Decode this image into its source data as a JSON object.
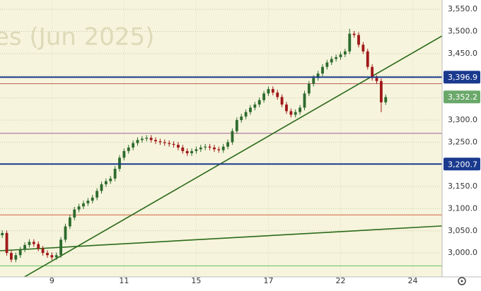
{
  "chart_data": {
    "type": "candlestick",
    "watermark": "es (Jun 2025)",
    "categories": [
      null,
      null,
      null,
      null,
      null,
      null,
      null,
      null,
      null,
      null,
      null,
      "9",
      null,
      null,
      null,
      null,
      null,
      null,
      null,
      null,
      null,
      null,
      null,
      null,
      null,
      null,
      null,
      "11",
      null,
      null,
      null,
      null,
      null,
      null,
      null,
      null,
      null,
      null,
      null,
      null,
      null,
      null,
      null,
      "15",
      null,
      null,
      null,
      null,
      null,
      null,
      null,
      null,
      null,
      null,
      null,
      null,
      null,
      null,
      null,
      "17",
      null,
      null,
      null,
      null,
      null,
      null,
      null,
      null,
      null,
      null,
      null,
      null,
      null,
      null,
      null,
      "22",
      null,
      null,
      null,
      null,
      null,
      null,
      null,
      null,
      null,
      null,
      null,
      null,
      null,
      null,
      null,
      "24",
      null,
      null,
      null,
      null,
      null,
      null
    ],
    "open": [
      3040,
      3045,
      3000,
      2985,
      2995,
      3008,
      3018,
      3025,
      3020,
      3010,
      3000,
      2995,
      2990,
      2995,
      3030,
      3060,
      3080,
      3098,
      3105,
      3112,
      3118,
      3125,
      3140,
      3155,
      3162,
      3168,
      3190,
      3215,
      3230,
      3238,
      3248,
      3255,
      3258,
      3260,
      3255,
      3252,
      3250,
      3248,
      3246,
      3244,
      3238,
      3230,
      3225,
      3230,
      3234,
      3238,
      3240,
      3238,
      3234,
      3232,
      3240,
      3250,
      3275,
      3300,
      3308,
      3318,
      3328,
      3335,
      3345,
      3360,
      3370,
      3362,
      3352,
      3335,
      3320,
      3312,
      3318,
      3328,
      3360,
      3382,
      3395,
      3405,
      3420,
      3430,
      3438,
      3442,
      3448,
      3455,
      3495,
      3492,
      3470,
      3455,
      3420,
      3395,
      3388,
      3340,
      null,
      null,
      null,
      null,
      null,
      null,
      null,
      null,
      null,
      null,
      null,
      null
    ],
    "high": [
      3051,
      3051,
      3006,
      3001,
      3014,
      3024,
      3031,
      3031,
      3026,
      3016,
      3006,
      3001,
      3001,
      3036,
      3066,
      3086,
      3104,
      3111,
      3118,
      3124,
      3131,
      3146,
      3161,
      3168,
      3174,
      3196,
      3221,
      3236,
      3244,
      3254,
      3261,
      3264,
      3266,
      3266,
      3261,
      3258,
      3256,
      3254,
      3252,
      3250,
      3244,
      3236,
      3236,
      3240,
      3244,
      3246,
      3246,
      3244,
      3240,
      3246,
      3256,
      3281,
      3306,
      3314,
      3324,
      3334,
      3341,
      3351,
      3366,
      3376,
      3376,
      3368,
      3358,
      3341,
      3326,
      3324,
      3334,
      3366,
      3388,
      3401,
      3411,
      3426,
      3436,
      3444,
      3448,
      3454,
      3461,
      3506,
      3501,
      3498,
      3476,
      3461,
      3426,
      3401,
      3394,
      3358,
      null,
      null,
      null,
      null,
      null,
      null,
      null,
      null,
      null,
      null,
      null,
      null
    ],
    "low": [
      3034,
      2994,
      2979,
      2979,
      2989,
      3002,
      3012,
      3014,
      3004,
      2994,
      2989,
      2984,
      2984,
      2989,
      3024,
      3054,
      3074,
      3092,
      3099,
      3106,
      3112,
      3119,
      3134,
      3149,
      3156,
      3162,
      3184,
      3209,
      3224,
      3232,
      3242,
      3249,
      3252,
      3249,
      3246,
      3244,
      3242,
      3240,
      3238,
      3232,
      3224,
      3219,
      3219,
      3224,
      3228,
      3232,
      3232,
      3228,
      3226,
      3226,
      3234,
      3244,
      3269,
      3294,
      3302,
      3312,
      3322,
      3329,
      3339,
      3354,
      3356,
      3346,
      3329,
      3314,
      3306,
      3306,
      3312,
      3322,
      3354,
      3376,
      3389,
      3399,
      3414,
      3424,
      3432,
      3436,
      3442,
      3449,
      3486,
      3464,
      3449,
      3414,
      3389,
      3382,
      3318,
      3334,
      null,
      null,
      null,
      null,
      null,
      null,
      null,
      null,
      null,
      null,
      null,
      null
    ],
    "close": [
      3045,
      3000,
      2985,
      2995,
      3008,
      3018,
      3025,
      3020,
      3010,
      3000,
      2995,
      2990,
      2995,
      3030,
      3060,
      3080,
      3098,
      3105,
      3112,
      3118,
      3125,
      3140,
      3155,
      3162,
      3168,
      3190,
      3215,
      3230,
      3238,
      3248,
      3255,
      3258,
      3260,
      3255,
      3252,
      3250,
      3248,
      3246,
      3244,
      3238,
      3230,
      3225,
      3230,
      3234,
      3238,
      3240,
      3238,
      3234,
      3232,
      3240,
      3250,
      3275,
      3300,
      3308,
      3318,
      3328,
      3335,
      3345,
      3360,
      3370,
      3362,
      3352,
      3335,
      3320,
      3312,
      3318,
      3328,
      3360,
      3382,
      3395,
      3405,
      3420,
      3430,
      3438,
      3442,
      3448,
      3455,
      3495,
      3492,
      3470,
      3455,
      3420,
      3395,
      3388,
      3340,
      3352,
      null,
      null,
      null,
      null,
      null,
      null,
      null,
      null,
      null,
      null,
      null,
      null
    ],
    "up_color": "#2e6b2e",
    "down_color": "#a01818",
    "ylim": [
      2946,
      3571
    ],
    "yticks": [
      {
        "value": 3000,
        "label": "3,000.0"
      },
      {
        "value": 3050,
        "label": "3,050.0"
      },
      {
        "value": 3100,
        "label": "3,100.0"
      },
      {
        "value": 3150,
        "label": "3,150.0"
      },
      {
        "value": 3200,
        "label": "3,200.0"
      },
      {
        "value": 3250,
        "label": "3,250.0"
      },
      {
        "value": 3300,
        "label": "3,300.0"
      },
      {
        "value": 3350,
        "label": "3,350.0"
      },
      {
        "value": 3400,
        "label": "3,400.0"
      },
      {
        "value": 3450,
        "label": "3,450.0"
      },
      {
        "value": 3500,
        "label": "3,500.0"
      },
      {
        "value": 3550,
        "label": "3,550.0"
      }
    ],
    "grid": true,
    "price_lines": [
      {
        "value": 3396.9,
        "label": "3,396.9",
        "color": "#1a3a8f"
      },
      {
        "value": 3200.7,
        "label": "3,200.7",
        "color": "#1a3a8f"
      },
      {
        "value": 3352.2,
        "label": "3,352.2",
        "color": "#6aa86a"
      }
    ],
    "levels": [
      {
        "value": 3382,
        "color": "#c06060"
      },
      {
        "value": 3270,
        "color": "#a060a0"
      },
      {
        "value": 3086,
        "color": "#d06040"
      },
      {
        "value": 2971,
        "color": "#60c060"
      }
    ],
    "trend_lines": [
      {
        "start": 2914,
        "end": 3490,
        "color": "#2a6a1a"
      },
      {
        "start": 3005,
        "end": 3061,
        "color": "#2a6a1a"
      }
    ]
  }
}
